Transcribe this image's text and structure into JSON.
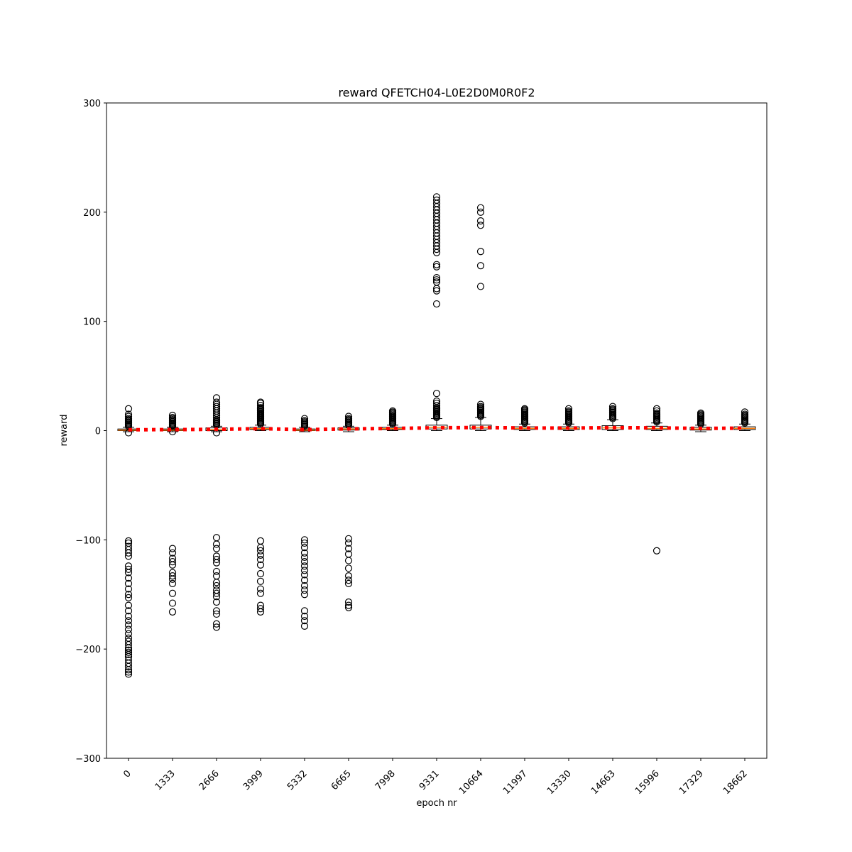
{
  "chart_data": {
    "type": "box",
    "title": "reward QFETCH04-L0E2D0M0R0F2",
    "xlabel": "epoch nr",
    "ylabel": "reward",
    "ylim": [
      -300,
      300
    ],
    "yticks": [
      300,
      200,
      100,
      0,
      -100,
      -200,
      -300
    ],
    "ytick_labels": [
      "300",
      "200",
      "100",
      "0",
      "−100",
      "−200",
      "−300"
    ],
    "categories": [
      "0",
      "1333",
      "2666",
      "3999",
      "5332",
      "6665",
      "7998",
      "9331",
      "10664",
      "11997",
      "13330",
      "14663",
      "15996",
      "17329",
      "18662"
    ],
    "grid": false,
    "colors": {
      "box": "#000000",
      "median": "#ff7f0e",
      "mean_line": "#ff0000",
      "flier": "#000000"
    },
    "mean_line": [
      0.8,
      0.9,
      1.2,
      1.8,
      0.9,
      1.6,
      2.0,
      2.6,
      2.8,
      2.4,
      2.3,
      2.7,
      2.5,
      2.0,
      2.3
    ],
    "boxes": [
      {
        "whislo": -1,
        "q1": 0,
        "med": 0.5,
        "q3": 1.5,
        "whishi": 3,
        "fliers": [
          20,
          15,
          13,
          11,
          10,
          9,
          8,
          7,
          6,
          5,
          4,
          -2,
          -101,
          -103,
          -106,
          -109,
          -112,
          -115,
          -124,
          -127,
          -130,
          -135,
          -140,
          -145,
          -150,
          -153,
          -160,
          -165,
          -170,
          -174,
          -178,
          -182,
          -186,
          -190,
          -193,
          -196,
          -199,
          -201,
          -203,
          -205,
          -207,
          -210,
          -213,
          -216,
          -219,
          -221,
          -223
        ]
      },
      {
        "whislo": -1,
        "q1": 0,
        "med": 0.5,
        "q3": 1.5,
        "whishi": 3,
        "fliers": [
          14,
          12,
          11,
          10,
          9,
          8,
          7,
          6,
          5,
          4,
          -1,
          -108,
          -112,
          -117,
          -120,
          -123,
          -130,
          -133,
          -136,
          -140,
          -149,
          -158,
          -166
        ]
      },
      {
        "whislo": -1,
        "q1": 0,
        "med": 1,
        "q3": 2.5,
        "whishi": 4,
        "fliers": [
          30,
          26,
          24,
          22,
          20,
          18,
          16,
          14,
          12,
          10,
          9,
          8,
          7,
          6,
          5,
          -2,
          -98,
          -104,
          -108,
          -115,
          -118,
          -121,
          -129,
          -133,
          -139,
          -142,
          -146,
          -149,
          -152,
          -157,
          -165,
          -168,
          -177,
          -180
        ]
      },
      {
        "whislo": 0,
        "q1": 1,
        "med": 1.8,
        "q3": 3,
        "whishi": 5,
        "fliers": [
          26,
          25,
          23,
          21,
          20,
          19,
          18,
          17,
          16,
          15,
          14,
          13,
          12,
          11,
          10,
          9,
          8,
          7,
          6,
          -101,
          -107,
          -110,
          -114,
          -118,
          -123,
          -131,
          -138,
          -145,
          -149,
          -160,
          -163,
          -166
        ]
      },
      {
        "whislo": -1,
        "q1": 0,
        "med": 0.5,
        "q3": 1.5,
        "whishi": 3,
        "fliers": [
          11,
          9,
          8,
          7,
          6,
          5,
          4,
          -100,
          -103,
          -107,
          -112,
          -116,
          -120,
          -124,
          -128,
          -132,
          -137,
          -142,
          -146,
          -150,
          -165,
          -170,
          -174,
          -179
        ]
      },
      {
        "whislo": -1,
        "q1": 0.5,
        "med": 1.5,
        "q3": 2.5,
        "whishi": 4,
        "fliers": [
          13,
          11,
          10,
          9,
          8,
          7,
          6,
          5,
          -99,
          -103,
          -108,
          -113,
          -119,
          -126,
          -133,
          -137,
          -140,
          -157,
          -160,
          -162
        ]
      },
      {
        "whislo": 0,
        "q1": 1,
        "med": 1.8,
        "q3": 3,
        "whishi": 5,
        "fliers": [
          18,
          17,
          16,
          15,
          14,
          13,
          12,
          11,
          10,
          9,
          8,
          7,
          6
        ]
      },
      {
        "whislo": 0,
        "q1": 1.5,
        "med": 3,
        "q3": 5,
        "whishi": 11,
        "fliers": [
          214,
          211,
          208,
          205,
          202,
          199,
          196,
          193,
          190,
          187,
          184,
          181,
          178,
          175,
          172,
          169,
          166,
          163,
          152,
          150,
          140,
          138,
          136,
          130,
          128,
          116,
          34,
          27,
          25,
          23,
          21,
          20,
          19,
          18,
          17,
          16,
          15,
          14,
          13,
          12
        ]
      },
      {
        "whislo": 0,
        "q1": 1.5,
        "med": 3,
        "q3": 5,
        "whishi": 12,
        "fliers": [
          204,
          200,
          192,
          188,
          164,
          151,
          132,
          24,
          22,
          21,
          20,
          19,
          18,
          17,
          16,
          15,
          14,
          13
        ]
      },
      {
        "whislo": 0,
        "q1": 1,
        "med": 2,
        "q3": 3.5,
        "whishi": 6,
        "fliers": [
          20,
          19,
          18,
          17,
          16,
          15,
          14,
          13,
          12,
          11,
          10,
          9,
          8,
          7
        ]
      },
      {
        "whislo": 0,
        "q1": 1,
        "med": 2,
        "q3": 3.5,
        "whishi": 6,
        "fliers": [
          20,
          18,
          17,
          16,
          15,
          14,
          13,
          12,
          11,
          10,
          9,
          8,
          7
        ]
      },
      {
        "whislo": 0,
        "q1": 1,
        "med": 2.5,
        "q3": 4.5,
        "whishi": 10,
        "fliers": [
          22,
          20,
          19,
          18,
          17,
          16,
          15,
          14,
          13,
          12,
          11
        ]
      },
      {
        "whislo": 0,
        "q1": 1,
        "med": 2,
        "q3": 4,
        "whishi": 7,
        "fliers": [
          20,
          18,
          16,
          15,
          14,
          13,
          12,
          11,
          10,
          9,
          8,
          -110
        ]
      },
      {
        "whislo": -1,
        "q1": 0.5,
        "med": 1.5,
        "q3": 3,
        "whishi": 5,
        "fliers": [
          16,
          15,
          14,
          13,
          12,
          11,
          10,
          9,
          8,
          7,
          6
        ]
      },
      {
        "whislo": 0,
        "q1": 1,
        "med": 2,
        "q3": 3.5,
        "whishi": 6,
        "fliers": [
          17,
          15,
          14,
          13,
          12,
          11,
          10,
          9,
          8,
          7
        ]
      }
    ]
  }
}
